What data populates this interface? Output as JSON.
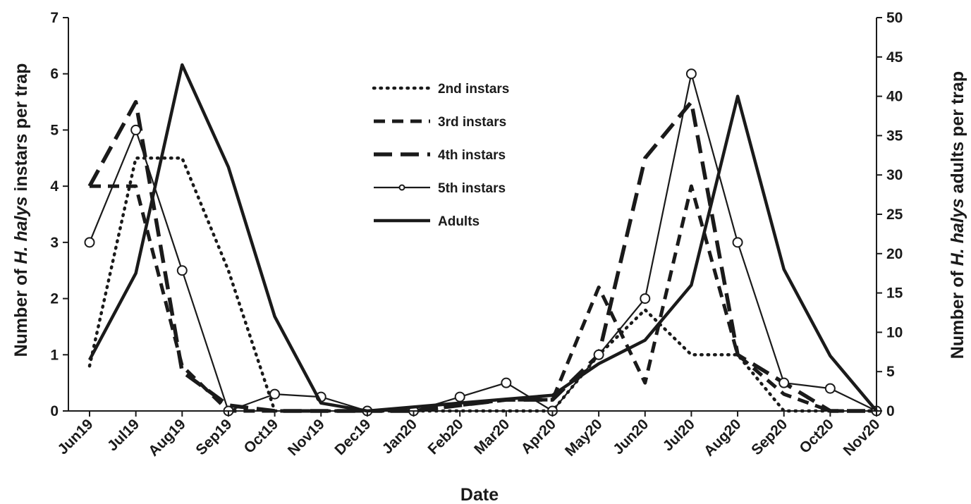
{
  "chart_data": {
    "type": "line",
    "xlabel": "Date",
    "ylabel_left_parts": [
      "Number of ",
      "H. halys",
      " instars  per trap"
    ],
    "ylabel_right_parts": [
      "Number of ",
      "H. halys",
      " adults per trap"
    ],
    "categories": [
      "Jun19",
      "Jul19",
      "Aug19",
      "Sep19",
      "Oct19",
      "Nov19",
      "Dec19",
      "Jan20",
      "Feb20",
      "Mar20",
      "Apr20",
      "May20",
      "Jun20",
      "Jul20",
      "Aug20",
      "Sep20",
      "Oct20",
      "Nov20"
    ],
    "ylim_left": [
      0,
      7
    ],
    "yticks_left": [
      "0",
      "1",
      "2",
      "3",
      "4",
      "5",
      "6",
      "7"
    ],
    "ylim_right": [
      0,
      50
    ],
    "yticks_right": [
      "0",
      "5",
      "10",
      "15",
      "20",
      "25",
      "30",
      "35",
      "40",
      "45",
      "50"
    ],
    "grid": false,
    "legend_position": "top-center",
    "series": [
      {
        "name": "2nd instars",
        "axis": "left",
        "style": "dotted",
        "values": [
          0.8,
          4.5,
          4.5,
          2.5,
          0,
          0,
          0,
          0,
          0,
          0,
          0,
          1.0,
          1.8,
          1.0,
          1.0,
          0,
          0,
          0
        ]
      },
      {
        "name": "3rd instars",
        "axis": "left",
        "style": "dashed",
        "values": [
          4.0,
          4.0,
          0.8,
          0,
          0,
          0,
          0,
          0,
          0.1,
          0.2,
          0.2,
          2.2,
          0.5,
          4.0,
          1.0,
          0.3,
          0,
          0
        ]
      },
      {
        "name": "4th instars",
        "axis": "left",
        "style": "longdash",
        "values": [
          4.0,
          5.5,
          0.7,
          0.1,
          0,
          0,
          0,
          0,
          0.1,
          0.2,
          0.2,
          1.0,
          4.5,
          5.5,
          1.0,
          0.5,
          0,
          0
        ]
      },
      {
        "name": "5th instars",
        "axis": "left",
        "style": "solid-marker",
        "values": [
          3.0,
          5.0,
          2.5,
          0,
          0.3,
          0.25,
          0,
          0,
          0.25,
          0.5,
          0,
          1.0,
          2.0,
          6.0,
          3.0,
          0.5,
          0.4,
          0
        ]
      },
      {
        "name": "Adults",
        "axis": "right",
        "style": "solid-thick",
        "values": [
          6.5,
          17.5,
          44,
          31,
          12,
          1,
          0,
          0.5,
          1.0,
          1.5,
          2.0,
          6.0,
          9.0,
          16.0,
          40.0,
          18.0,
          7.0,
          0
        ]
      }
    ]
  }
}
